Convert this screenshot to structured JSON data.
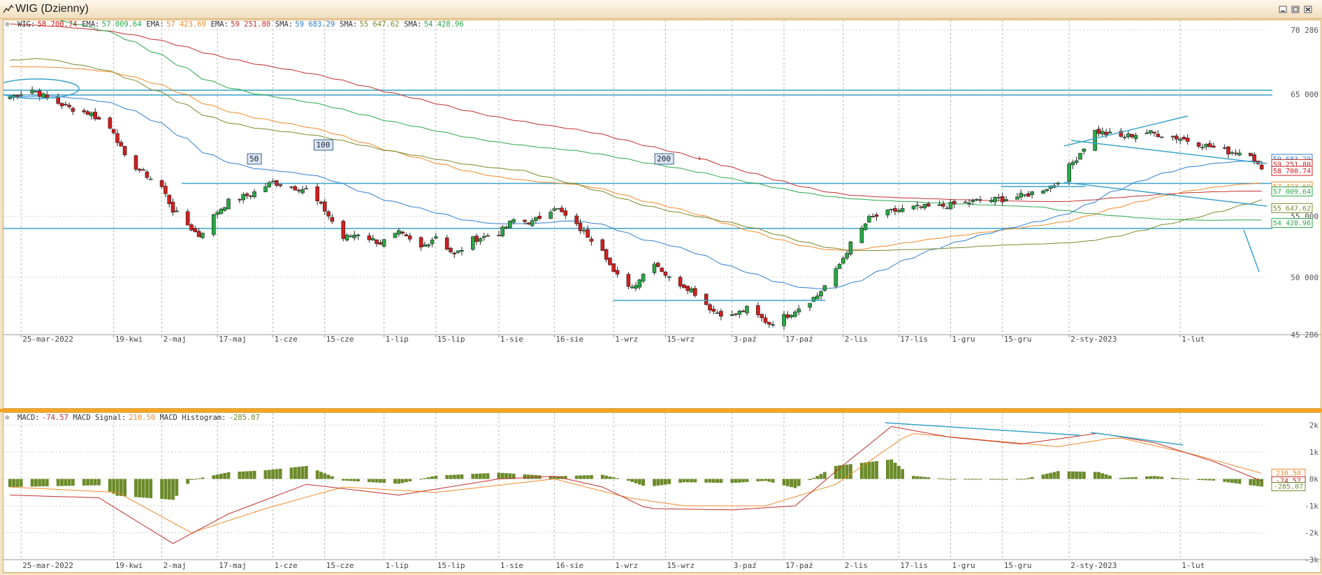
{
  "window": {
    "title": "WIG (Dzienny)"
  },
  "colors": {
    "up": "#27a844",
    "down": "#d11f1f",
    "macd": "#c0302c",
    "signal": "#f08a2a",
    "hist": "#6b8b2a",
    "ema200": "#c0302c",
    "ema100": "#f08a2a",
    "ema50": "#2f7fd0",
    "sma200": "#2aa84a",
    "sma100": "#7a8a2a",
    "trend": "#3aa3c8"
  },
  "main": {
    "legend": [
      {
        "label": "WIG:",
        "value": "58 700.74",
        "color": "#d11f1f"
      },
      {
        "label": "EMA:",
        "value": "57 009.64",
        "color": "#2aa84a"
      },
      {
        "label": "EMA:",
        "value": "57 423.69",
        "color": "#f08a2a"
      },
      {
        "label": "EMA:",
        "value": "59 251.80",
        "color": "#c0302c"
      },
      {
        "label": "SMA:",
        "value": "59 683.29",
        "color": "#2f7fd0"
      },
      {
        "label": "SMA:",
        "value": "55 647.62",
        "color": "#7a8a2a"
      },
      {
        "label": "SMA:",
        "value": "54 428.96",
        "color": "#2aa84a"
      }
    ],
    "y_ticks": [
      {
        "y": 70286,
        "label": "70 286"
      },
      {
        "y": 65000,
        "label": "65 000"
      },
      {
        "y": 55000,
        "label": "55 000"
      },
      {
        "y": 50000,
        "label": "50 000"
      },
      {
        "y": 45286,
        "label": "45 286"
      }
    ],
    "price_tags": [
      {
        "value": 59683,
        "label": "59 683.29",
        "color": "#2f7fd0"
      },
      {
        "value": 59251,
        "label": "59 251.80",
        "color": "#c0302c"
      },
      {
        "value": 58700,
        "label": "58 700.74",
        "color": "#d11f1f"
      },
      {
        "value": 57423,
        "label": "57 423.69",
        "color": "#f08a2a"
      },
      {
        "value": 57009,
        "label": "57 009.64",
        "color": "#2aa84a"
      },
      {
        "value": 55647,
        "label": "55 647.62",
        "color": "#7a8a2a"
      },
      {
        "value": 54428,
        "label": "54 428.96",
        "color": "#2aa84a"
      }
    ],
    "ma_labels": [
      {
        "text": "50",
        "x": "2022-05-27"
      },
      {
        "text": "100",
        "x": "2022-06-14"
      },
      {
        "text": "200",
        "x": "2022-09-14"
      }
    ]
  },
  "x_labels": [
    {
      "date": "2022-03-25",
      "label": "25-mar-2022"
    },
    {
      "date": "2022-04-19",
      "label": "19-kwi"
    },
    {
      "date": "2022-05-02",
      "label": "2-maj"
    },
    {
      "date": "2022-05-17",
      "label": "17-maj"
    },
    {
      "date": "2022-06-01",
      "label": "1-cze"
    },
    {
      "date": "2022-06-15",
      "label": "15-cze"
    },
    {
      "date": "2022-07-01",
      "label": "1-lip"
    },
    {
      "date": "2022-07-15",
      "label": "15-lip"
    },
    {
      "date": "2022-08-01",
      "label": "1-sie"
    },
    {
      "date": "2022-08-16",
      "label": "16-sie"
    },
    {
      "date": "2022-09-01",
      "label": "1-wrz"
    },
    {
      "date": "2022-09-15",
      "label": "15-wrz"
    },
    {
      "date": "2022-10-03",
      "label": "3-paź"
    },
    {
      "date": "2022-10-17",
      "label": "17-paź"
    },
    {
      "date": "2022-11-02",
      "label": "2-lis"
    },
    {
      "date": "2022-11-17",
      "label": "17-lis"
    },
    {
      "date": "2022-12-01",
      "label": "1-gru"
    },
    {
      "date": "2022-12-15",
      "label": "15-gru"
    },
    {
      "date": "2023-01-02",
      "label": "2-sty-2023"
    },
    {
      "date": "2023-02-01",
      "label": "1-lut"
    }
  ],
  "macd": {
    "legend": [
      {
        "label": "MACD:",
        "value": "-74.57",
        "color": "#c0302c"
      },
      {
        "label": "MACD Signal:",
        "value": "210.50",
        "color": "#f08a2a"
      },
      {
        "label": "MACD Histogram:",
        "value": "-285.07",
        "color": "#6b8b2a"
      }
    ],
    "y_ticks": [
      {
        "y": 2000,
        "label": "2k"
      },
      {
        "y": 1000,
        "label": "1k"
      },
      {
        "y": 0,
        "label": "0k"
      },
      {
        "y": -1000,
        "label": "-1k"
      },
      {
        "y": -2000,
        "label": "-2k"
      },
      {
        "y": -3000,
        "label": "-3k"
      }
    ],
    "tags": [
      {
        "value": 210.5,
        "label": "210.50",
        "color": "#f08a2a"
      },
      {
        "value": -74.57,
        "label": "-74.57",
        "color": "#c0302c"
      },
      {
        "value": -285.07,
        "label": "-285.07",
        "color": "#6b8b2a"
      }
    ]
  },
  "chart_data": {
    "type": "candlestick",
    "x_range": [
      "2022-03-21",
      "2023-02-24"
    ],
    "ylim": [
      45286,
      70286
    ],
    "anchors": [
      [
        "2022-03-22",
        64800
      ],
      [
        "2022-03-28",
        65400
      ],
      [
        "2022-04-01",
        64700
      ],
      [
        "2022-04-07",
        63900
      ],
      [
        "2022-04-13",
        63400
      ],
      [
        "2022-04-19",
        62000
      ],
      [
        "2022-04-22",
        59800
      ],
      [
        "2022-04-26",
        58800
      ],
      [
        "2022-05-02",
        57400
      ],
      [
        "2022-05-05",
        55500
      ],
      [
        "2022-05-10",
        54000
      ],
      [
        "2022-05-12",
        53400
      ],
      [
        "2022-05-17",
        55400
      ],
      [
        "2022-05-20",
        56200
      ],
      [
        "2022-05-26",
        56800
      ],
      [
        "2022-06-01",
        57800
      ],
      [
        "2022-06-06",
        57400
      ],
      [
        "2022-06-10",
        57200
      ],
      [
        "2022-06-15",
        55500
      ],
      [
        "2022-06-20",
        53200
      ],
      [
        "2022-06-24",
        53600
      ],
      [
        "2022-06-30",
        52800
      ],
      [
        "2022-07-05",
        53600
      ],
      [
        "2022-07-11",
        52400
      ],
      [
        "2022-07-15",
        53400
      ],
      [
        "2022-07-20",
        51800
      ],
      [
        "2022-07-25",
        53100
      ],
      [
        "2022-08-01",
        53600
      ],
      [
        "2022-08-05",
        54700
      ],
      [
        "2022-08-10",
        54500
      ],
      [
        "2022-08-16",
        55800
      ],
      [
        "2022-08-22",
        54200
      ],
      [
        "2022-08-29",
        52400
      ],
      [
        "2022-09-01",
        50300
      ],
      [
        "2022-09-06",
        49200
      ],
      [
        "2022-09-12",
        51300
      ],
      [
        "2022-09-16",
        49900
      ],
      [
        "2022-09-22",
        49000
      ],
      [
        "2022-09-28",
        47200
      ],
      [
        "2022-10-03",
        46800
      ],
      [
        "2022-10-07",
        47400
      ],
      [
        "2022-10-13",
        46200
      ],
      [
        "2022-10-18",
        46900
      ],
      [
        "2022-10-21",
        47500
      ],
      [
        "2022-10-26",
        48500
      ],
      [
        "2022-10-31",
        50500
      ],
      [
        "2022-11-04",
        52700
      ],
      [
        "2022-11-09",
        54800
      ],
      [
        "2022-11-15",
        55400
      ],
      [
        "2022-11-21",
        55700
      ],
      [
        "2022-11-28",
        55800
      ],
      [
        "2022-12-05",
        56100
      ],
      [
        "2022-12-09",
        56300
      ],
      [
        "2022-12-15",
        56400
      ],
      [
        "2022-12-21",
        56700
      ],
      [
        "2022-12-29",
        57600
      ],
      [
        "2023-01-04",
        59800
      ],
      [
        "2023-01-09",
        62000
      ],
      [
        "2023-01-16",
        61500
      ],
      [
        "2023-01-23",
        61900
      ],
      [
        "2023-02-01",
        61400
      ],
      [
        "2023-02-08",
        60800
      ],
      [
        "2023-02-14",
        60300
      ],
      [
        "2023-02-20",
        60200
      ],
      [
        "2023-02-23",
        58700
      ]
    ],
    "hlines": [
      65350,
      64950,
      57700,
      54000
    ],
    "macd_anchors": [
      [
        "2022-03-22",
        -600
      ],
      [
        "2022-04-15",
        -700
      ],
      [
        "2022-05-05",
        -2400
      ],
      [
        "2022-05-20",
        -1300
      ],
      [
        "2022-06-10",
        -200
      ],
      [
        "2022-07-05",
        -600
      ],
      [
        "2022-08-01",
        0
      ],
      [
        "2022-08-16",
        100
      ],
      [
        "2022-08-29",
        -300
      ],
      [
        "2022-09-10",
        -1100
      ],
      [
        "2022-10-03",
        -1150
      ],
      [
        "2022-10-20",
        -1000
      ],
      [
        "2022-11-01",
        400
      ],
      [
        "2022-11-15",
        1950
      ],
      [
        "2022-12-01",
        1550
      ],
      [
        "2022-12-20",
        1300
      ],
      [
        "2023-01-10",
        1700
      ],
      [
        "2023-01-25",
        1350
      ],
      [
        "2023-02-10",
        650
      ],
      [
        "2023-02-23",
        -75
      ]
    ],
    "signal_anchors": [
      [
        "2022-03-22",
        -300
      ],
      [
        "2022-04-20",
        -500
      ],
      [
        "2022-05-10",
        -2000
      ],
      [
        "2022-05-30",
        -1100
      ],
      [
        "2022-06-20",
        -300
      ],
      [
        "2022-07-15",
        -500
      ],
      [
        "2022-08-16",
        0
      ],
      [
        "2022-09-05",
        -700
      ],
      [
        "2022-09-20",
        -1000
      ],
      [
        "2022-10-12",
        -1000
      ],
      [
        "2022-10-31",
        -200
      ],
      [
        "2022-11-20",
        1700
      ],
      [
        "2022-12-10",
        1450
      ],
      [
        "2022-12-30",
        1200
      ],
      [
        "2023-01-15",
        1550
      ],
      [
        "2023-02-05",
        900
      ],
      [
        "2023-02-23",
        210
      ]
    ]
  }
}
